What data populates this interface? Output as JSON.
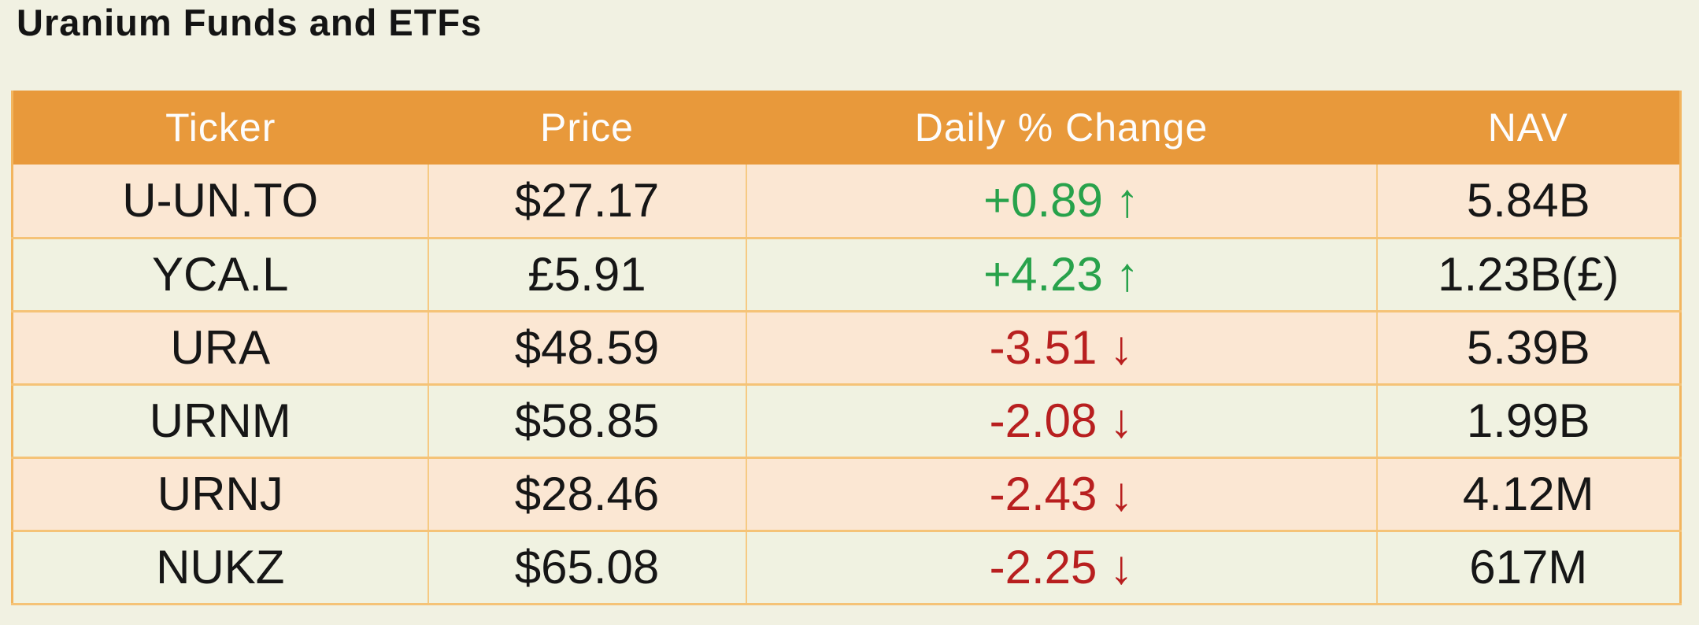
{
  "page": {
    "title": "Uranium Funds and ETFs"
  },
  "colors": {
    "page_bg": "#F1F1E2",
    "header_bg": "#E8993B",
    "header_text": "#FDFDFD",
    "row_peach": "#FBE7D3",
    "row_green": "#F0F2E1",
    "border": "#F5C377",
    "positive": "#28A24B",
    "negative": "#B81F1F",
    "body_text": "#161616"
  },
  "table": {
    "columns": [
      "Ticker",
      "Price",
      "Daily % Change",
      "NAV"
    ],
    "rows": [
      {
        "ticker": "U-UN.TO",
        "price": "$27.17",
        "change": "+0.89",
        "arrow": "↑",
        "direction": "up",
        "nav": "5.84B"
      },
      {
        "ticker": "YCA.L",
        "price": "£5.91",
        "change": "+4.23",
        "arrow": "↑",
        "direction": "up",
        "nav": "1.23B(£)"
      },
      {
        "ticker": "URA",
        "price": "$48.59",
        "change": "-3.51",
        "arrow": "↓",
        "direction": "down",
        "nav": "5.39B"
      },
      {
        "ticker": "URNM",
        "price": "$58.85",
        "change": "-2.08",
        "arrow": "↓",
        "direction": "down",
        "nav": "1.99B"
      },
      {
        "ticker": "URNJ",
        "price": "$28.46",
        "change": "-2.43",
        "arrow": "↓",
        "direction": "down",
        "nav": "4.12M"
      },
      {
        "ticker": "NUKZ",
        "price": "$65.08",
        "change": "-2.25",
        "arrow": "↓",
        "direction": "down",
        "nav": "617M"
      }
    ]
  },
  "chart_data": {
    "type": "table",
    "title": "Uranium Funds and ETFs",
    "columns": [
      "Ticker",
      "Price",
      "Daily % Change",
      "NAV"
    ],
    "rows": [
      [
        "U-UN.TO",
        "$27.17",
        "+0.89 ↑",
        "5.84B"
      ],
      [
        "YCA.L",
        "£5.91",
        "+4.23 ↑",
        "1.23B(£)"
      ],
      [
        "URA",
        "$48.59",
        "-3.51 ↓",
        "5.39B"
      ],
      [
        "URNM",
        "$58.85",
        "-2.08 ↓",
        "1.99B"
      ],
      [
        "URNJ",
        "$28.46",
        "-2.43 ↓",
        "4.12M"
      ],
      [
        "NUKZ",
        "$65.08",
        "-2.25 ↓",
        "617M"
      ]
    ],
    "daily_pct_change_values": [
      0.89,
      4.23,
      -3.51,
      -2.08,
      -2.43,
      -2.25
    ],
    "price_values": [
      27.17,
      5.91,
      48.59,
      58.85,
      28.46,
      65.08
    ]
  }
}
